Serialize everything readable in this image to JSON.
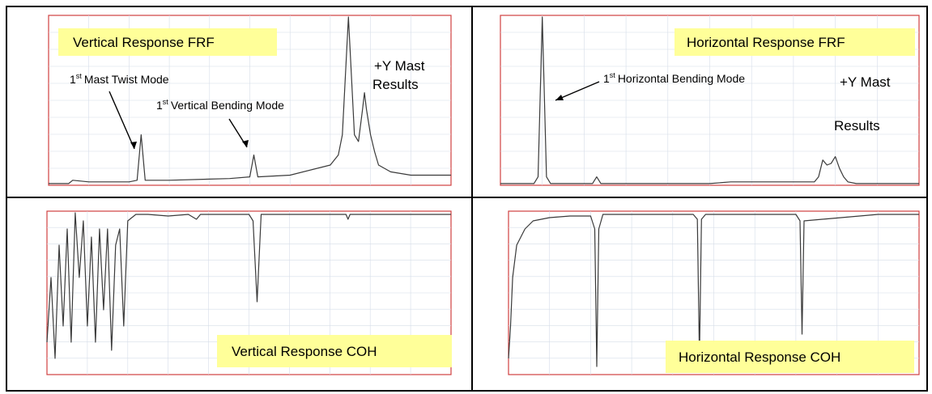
{
  "chart_data": [
    {
      "type": "line",
      "title": "Vertical Response FRF",
      "note": [
        "+Y Mast",
        "Results"
      ],
      "annotations": [
        {
          "sup": "st",
          "prefix": "1",
          "text": "Mast Twist Mode"
        },
        {
          "sup": "st",
          "prefix": "1",
          "text": "Vertical Bending Mode"
        }
      ],
      "x": [
        0,
        0.05,
        0.06,
        0.1,
        0.2,
        0.22,
        0.23,
        0.24,
        0.3,
        0.45,
        0.5,
        0.51,
        0.52,
        0.6,
        0.7,
        0.72,
        0.73,
        0.745,
        0.76,
        0.77,
        0.78,
        0.785,
        0.79,
        0.8,
        0.81,
        0.82,
        0.85,
        0.9,
        1.0
      ],
      "values": [
        0.01,
        0.01,
        0.03,
        0.02,
        0.02,
        0.03,
        0.3,
        0.03,
        0.03,
        0.04,
        0.05,
        0.18,
        0.05,
        0.06,
        0.12,
        0.18,
        0.3,
        1.0,
        0.3,
        0.26,
        0.45,
        0.55,
        0.45,
        0.3,
        0.2,
        0.12,
        0.08,
        0.06,
        0.06
      ]
    },
    {
      "type": "line",
      "title": "Horizontal Response FRF",
      "note": [
        "+Y Mast",
        "Results"
      ],
      "annotations": [
        {
          "sup": "st",
          "prefix": "1",
          "text": "Horizontal Bending Mode"
        }
      ],
      "x": [
        0,
        0.08,
        0.09,
        0.1,
        0.11,
        0.12,
        0.2,
        0.22,
        0.23,
        0.24,
        0.4,
        0.5,
        0.55,
        0.75,
        0.76,
        0.77,
        0.78,
        0.79,
        0.8,
        0.81,
        0.82,
        0.83,
        0.85,
        1.0
      ],
      "values": [
        0.01,
        0.01,
        0.05,
        1.0,
        0.05,
        0.01,
        0.01,
        0.01,
        0.05,
        0.01,
        0.01,
        0.01,
        0.02,
        0.02,
        0.05,
        0.15,
        0.12,
        0.13,
        0.17,
        0.1,
        0.05,
        0.02,
        0.01,
        0.01
      ]
    },
    {
      "type": "line",
      "title": "Vertical Response COH",
      "x": [
        0,
        0.01,
        0.02,
        0.03,
        0.04,
        0.05,
        0.06,
        0.07,
        0.08,
        0.09,
        0.1,
        0.11,
        0.12,
        0.13,
        0.14,
        0.15,
        0.16,
        0.17,
        0.18,
        0.19,
        0.2,
        0.22,
        0.25,
        0.3,
        0.35,
        0.37,
        0.38,
        0.4,
        0.5,
        0.51,
        0.52,
        0.53,
        0.6,
        0.7,
        0.74,
        0.745,
        0.75,
        0.8,
        0.9,
        1.0
      ],
      "values": [
        0.2,
        0.6,
        0.1,
        0.8,
        0.3,
        0.9,
        0.2,
        1.0,
        0.6,
        0.95,
        0.3,
        0.85,
        0.2,
        0.9,
        0.4,
        0.9,
        0.15,
        0.8,
        0.9,
        0.3,
        0.95,
        0.99,
        0.99,
        0.98,
        0.99,
        0.96,
        0.99,
        0.99,
        0.99,
        0.95,
        0.45,
        0.99,
        0.99,
        0.99,
        0.99,
        0.96,
        0.99,
        0.99,
        0.99,
        0.99
      ]
    },
    {
      "type": "line",
      "title": "Horizontal Response COH",
      "x": [
        0,
        0.005,
        0.01,
        0.02,
        0.04,
        0.06,
        0.1,
        0.15,
        0.2,
        0.21,
        0.215,
        0.22,
        0.23,
        0.3,
        0.4,
        0.45,
        0.46,
        0.465,
        0.47,
        0.48,
        0.6,
        0.7,
        0.71,
        0.715,
        0.72,
        0.9,
        1.0
      ],
      "values": [
        0.1,
        0.3,
        0.6,
        0.8,
        0.9,
        0.95,
        0.97,
        0.98,
        0.98,
        0.9,
        0.05,
        0.9,
        0.99,
        0.99,
        0.99,
        0.99,
        0.96,
        0.1,
        0.96,
        0.99,
        0.99,
        0.99,
        0.95,
        0.25,
        0.95,
        0.99,
        0.99
      ]
    }
  ]
}
